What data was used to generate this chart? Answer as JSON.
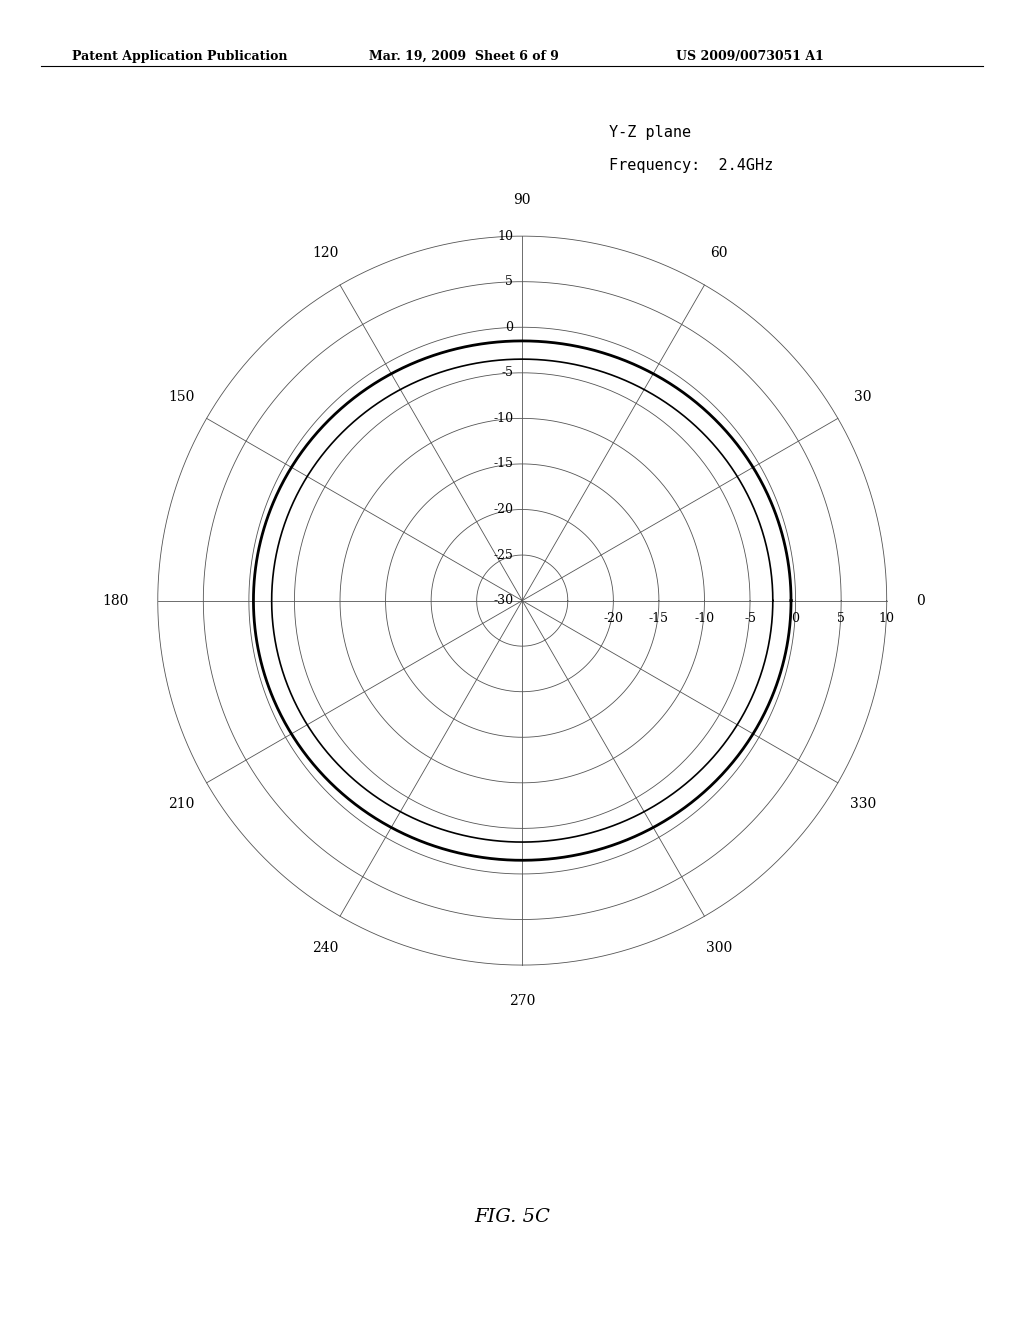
{
  "title_line1": "Y-Z plane",
  "title_line2": "Frequency:  2.4GHz",
  "figure_caption": "FIG. 5C",
  "header_left": "Patent Application Publication",
  "header_mid": "Mar. 19, 2009  Sheet 6 of 9",
  "header_right": "US 2009/0073051 A1",
  "radial_min_dB": -30,
  "radial_max_dB": 10,
  "radial_circles_dB": [
    -30,
    -25,
    -20,
    -15,
    -10,
    -5,
    0,
    5,
    10
  ],
  "radial_labels_vertical": [
    "10",
    "5",
    "0",
    "-5",
    "-10",
    "-15",
    "-20",
    "-25",
    "-30"
  ],
  "radial_labels_vertical_dB": [
    10,
    5,
    0,
    -5,
    -10,
    -15,
    -20,
    -25,
    -30
  ],
  "radial_labels_horiz_dB": [
    -20,
    -15,
    -10,
    -5,
    0,
    5,
    10
  ],
  "radial_labels_horiz": [
    "-20",
    "-15",
    "-10",
    "-5",
    "0",
    "5",
    "10"
  ],
  "angular_ticks_deg": [
    0,
    30,
    60,
    90,
    120,
    150,
    180,
    210,
    240,
    270,
    300,
    330
  ],
  "angular_tick_labels": [
    "0",
    "30",
    "60",
    "90",
    "120",
    "150",
    "180",
    "210",
    "240",
    "270",
    "300",
    "330"
  ],
  "background_color": "#ffffff",
  "line_color": "#000000",
  "grid_color": "#555555",
  "pattern_linewidth": 2.0,
  "grid_linewidth": 0.6,
  "font_size_labels": 10,
  "font_size_header": 9,
  "font_size_caption": 14
}
